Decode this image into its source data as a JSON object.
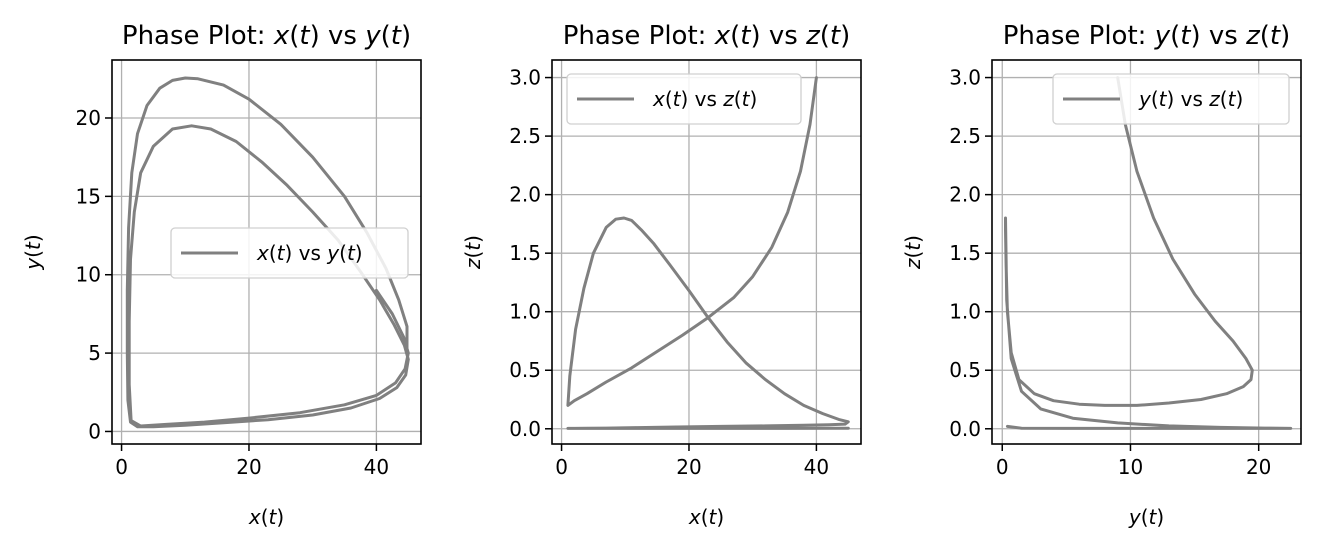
{
  "chart_data": [
    {
      "type": "line",
      "title": "Phase Plot: x(t) vs y(t)",
      "xlabel": "x(t)",
      "ylabel": "y(t)",
      "xlim": [
        -1.5,
        47
      ],
      "ylim": [
        -0.8,
        23.7
      ],
      "xticks": [
        0,
        20,
        40
      ],
      "xticklabels": [
        "0",
        "20",
        "40"
      ],
      "yticks": [
        0,
        5,
        10,
        15,
        20
      ],
      "yticklabels": [
        "0",
        "5",
        "10",
        "15",
        "20"
      ],
      "grid": true,
      "legend": "center-right",
      "series": [
        {
          "name": "x(t) vs y(t)",
          "color": "#808080",
          "x": [
            40,
            42.5,
            44.3,
            45,
            44.5,
            43,
            40,
            35,
            28,
            20,
            13,
            7,
            3,
            1.5,
            1.2,
            1.2,
            1.4,
            2,
            3,
            5,
            8,
            11,
            14,
            18,
            22,
            26,
            30,
            34,
            37.5,
            40.5,
            42.8,
            44.4,
            45,
            44.6,
            43.2,
            40.5,
            36,
            30,
            23,
            16,
            10,
            5,
            2.5,
            1.4,
            1,
            0.9,
            0.9,
            1.1,
            1.6,
            2.5,
            4,
            6,
            8,
            10,
            12,
            16,
            20,
            25,
            30,
            35,
            38.5,
            41.5,
            43.5,
            44.8,
            44.8
          ],
          "y": [
            9,
            7.5,
            6,
            5,
            4,
            3.1,
            2.3,
            1.7,
            1.2,
            0.85,
            0.6,
            0.45,
            0.35,
            0.7,
            3,
            7,
            11,
            14,
            16.5,
            18.2,
            19.3,
            19.5,
            19.3,
            18.5,
            17.2,
            15.7,
            14,
            12.2,
            10.2,
            8.4,
            6.8,
            5.5,
            4.6,
            3.6,
            2.8,
            2.1,
            1.5,
            1.05,
            0.75,
            0.55,
            0.4,
            0.3,
            0.3,
            0.6,
            2,
            5,
            9,
            13,
            16.5,
            19,
            20.8,
            21.9,
            22.4,
            22.55,
            22.5,
            22.1,
            21.2,
            19.6,
            17.5,
            15,
            12.7,
            10.4,
            8.4,
            6.7,
            5
          ]
        }
      ]
    },
    {
      "type": "line",
      "title": "Phase Plot: x(t) vs z(t)",
      "xlabel": "x(t)",
      "ylabel": "z(t)",
      "xlim": [
        -1.5,
        47
      ],
      "ylim": [
        -0.13,
        3.15
      ],
      "xticks": [
        0,
        20,
        40
      ],
      "xticklabels": [
        "0",
        "20",
        "40"
      ],
      "yticks": [
        0.0,
        0.5,
        1.0,
        1.5,
        2.0,
        2.5,
        3.0
      ],
      "yticklabels": [
        "0.0",
        "0.5",
        "1.0",
        "1.5",
        "2.0",
        "2.5",
        "3.0"
      ],
      "grid": true,
      "legend": "upper-left",
      "series": [
        {
          "name": "x(t) vs z(t)",
          "color": "#808080",
          "x": [
            40,
            39,
            37.5,
            35.5,
            33,
            30,
            27,
            23,
            19,
            15,
            11,
            7,
            4,
            2,
            1,
            1.3,
            2.2,
            3.5,
            5,
            7,
            8.5,
            9.8,
            11,
            12.5,
            14.5,
            17,
            20,
            23,
            26,
            29,
            32,
            35,
            38,
            41,
            43.5,
            45,
            44.5,
            42,
            38,
            32,
            25,
            18,
            12,
            7,
            4,
            2,
            1,
            3,
            8,
            15,
            25,
            35,
            45
          ],
          "y": [
            3.0,
            2.6,
            2.2,
            1.85,
            1.55,
            1.3,
            1.12,
            0.95,
            0.8,
            0.66,
            0.52,
            0.4,
            0.3,
            0.24,
            0.2,
            0.45,
            0.85,
            1.2,
            1.5,
            1.72,
            1.79,
            1.8,
            1.78,
            1.7,
            1.58,
            1.4,
            1.18,
            0.95,
            0.74,
            0.56,
            0.42,
            0.3,
            0.2,
            0.13,
            0.08,
            0.06,
            0.04,
            0.035,
            0.03,
            0.025,
            0.02,
            0.015,
            0.01,
            0.006,
            0.004,
            0.003,
            0.003,
            0.003,
            0.003,
            0.003,
            0.003,
            0.003,
            0.004
          ]
        }
      ]
    },
    {
      "type": "line",
      "title": "Phase Plot: y(t) vs z(t)",
      "xlabel": "y(t)",
      "ylabel": "z(t)",
      "xlim": [
        -0.8,
        23.3
      ],
      "ylim": [
        -0.13,
        3.15
      ],
      "xticks": [
        0,
        10,
        20
      ],
      "xticklabels": [
        "0",
        "10",
        "20"
      ],
      "yticks": [
        0.0,
        0.5,
        1.0,
        1.5,
        2.0,
        2.5,
        3.0
      ],
      "yticklabels": [
        "0.0",
        "0.5",
        "1.0",
        "1.5",
        "2.0",
        "2.5",
        "3.0"
      ],
      "grid": true,
      "legend": "upper-right",
      "series": [
        {
          "name": "y(t) vs z(t)",
          "color": "#808080",
          "x": [
            9,
            9.6,
            10.5,
            11.8,
            13.3,
            15,
            16.6,
            18,
            19,
            19.5,
            19.4,
            18.8,
            17.5,
            15.5,
            13,
            10.5,
            8,
            6,
            4,
            2.5,
            1.3,
            0.7,
            0.4,
            0.3,
            0.25,
            0.25,
            0.35,
            0.7,
            1.5,
            3,
            5.5,
            9,
            13,
            17,
            20.5,
            22.5,
            22.4,
            20,
            15,
            10,
            5,
            1.5,
            0.4
          ],
          "y": [
            3.0,
            2.6,
            2.2,
            1.8,
            1.45,
            1.15,
            0.92,
            0.75,
            0.6,
            0.5,
            0.42,
            0.36,
            0.3,
            0.25,
            0.22,
            0.2,
            0.2,
            0.21,
            0.24,
            0.3,
            0.42,
            0.65,
            1.0,
            1.4,
            1.7,
            1.8,
            1.1,
            0.6,
            0.32,
            0.17,
            0.09,
            0.05,
            0.025,
            0.012,
            0.006,
            0.003,
            0.003,
            0.003,
            0.003,
            0.003,
            0.003,
            0.005,
            0.02
          ]
        }
      ]
    }
  ]
}
